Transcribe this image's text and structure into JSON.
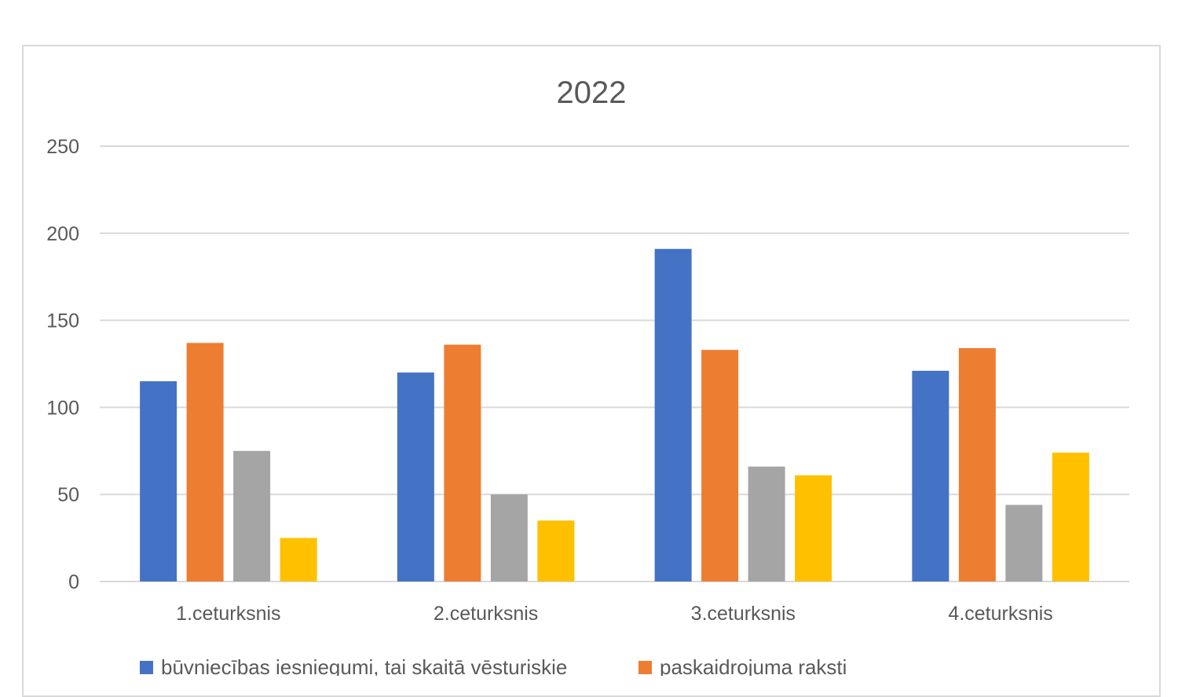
{
  "chart_data": {
    "type": "bar",
    "title": "2022",
    "categories": [
      "1.ceturksnis",
      "2.ceturksnis",
      "3.ceturksnis",
      "4.ceturksnis"
    ],
    "series": [
      {
        "name": "būvniecības iesniegumi, tai skaitā vēsturiskie",
        "color": "#4472C4",
        "values": [
          115,
          120,
          191,
          121
        ]
      },
      {
        "name": "paskaidrojuma raksti",
        "color": "#ED7D31",
        "values": [
          137,
          136,
          133,
          134
        ]
      },
      {
        "name": "",
        "color": "#A5A5A5",
        "values": [
          75,
          50,
          66,
          44
        ]
      },
      {
        "name": "",
        "color": "#FFC000",
        "values": [
          25,
          35,
          61,
          74
        ]
      }
    ],
    "yticks": [
      "0",
      "50",
      "100",
      "150",
      "200",
      "250"
    ],
    "ylim": [
      0,
      250
    ],
    "grid": true,
    "legend_position": "bottom"
  }
}
